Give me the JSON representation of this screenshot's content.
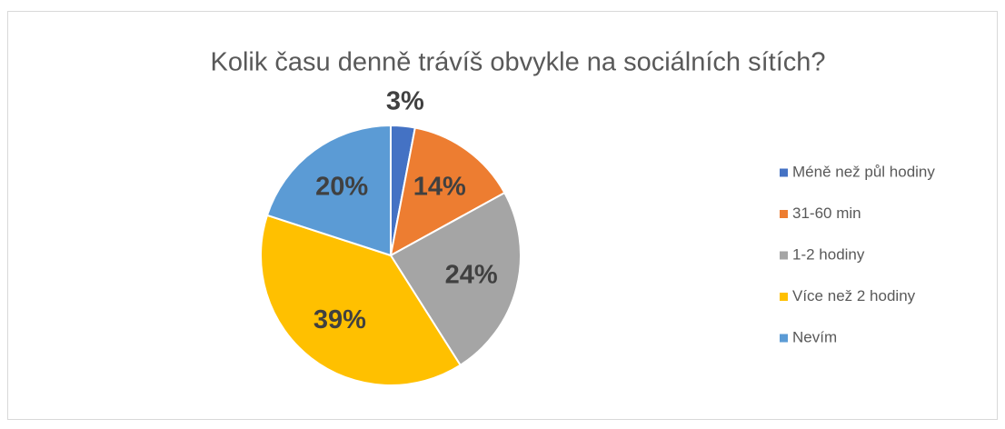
{
  "chart_data": {
    "type": "pie",
    "title": "Kolik času denně trávíš obvykle na sociálních sítích?",
    "categories": [
      "Méně než půl hodiny",
      "31-60 min",
      "1-2 hodiny",
      "Více než 2 hodiny",
      "Nevím"
    ],
    "values": [
      3,
      14,
      24,
      39,
      20
    ],
    "value_labels": [
      "3%",
      "14%",
      "24%",
      "39%",
      "20%"
    ],
    "colors": [
      "#4472c4",
      "#ed7d31",
      "#a5a5a5",
      "#ffc000",
      "#5b9bd5"
    ],
    "legend": "right"
  }
}
